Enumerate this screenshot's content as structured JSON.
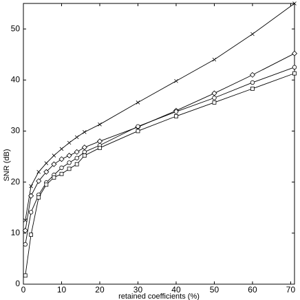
{
  "chart_data": {
    "type": "line",
    "x_label": "retained coefficients (%)",
    "y_label": "SNR (dB)",
    "x": [
      0.5,
      2,
      4,
      6,
      8,
      10,
      12,
      14,
      16,
      20,
      30,
      40,
      50,
      60,
      71
    ],
    "series": [
      {
        "marker": "x",
        "color": "#000000",
        "values": [
          12.5,
          19.2,
          22,
          23.7,
          25.2,
          26.5,
          27.7,
          28.8,
          29.8,
          31.3,
          35.6,
          39.8,
          44,
          49,
          55
        ]
      },
      {
        "marker": "diamond",
        "color": "#000000",
        "values": [
          10.5,
          17.3,
          20.2,
          22,
          23.5,
          24.5,
          25.2,
          25.9,
          26.8,
          28,
          30.8,
          34,
          37.4,
          41,
          45.2
        ]
      },
      {
        "marker": "circle",
        "color": "#000000",
        "values": [
          7.8,
          14.1,
          17.5,
          19.9,
          21.4,
          22.8,
          23.8,
          24.7,
          25.9,
          27.2,
          30.9,
          33.8,
          36.5,
          39.5,
          42.5
        ]
      },
      {
        "marker": "square",
        "color": "#000000",
        "values": [
          1.7,
          9.7,
          17,
          19.5,
          20.9,
          21.6,
          22.6,
          23.5,
          25.2,
          26.7,
          30.0,
          32.9,
          35.6,
          38.3,
          41.3
        ]
      }
    ],
    "xlim": [
      0,
      71
    ],
    "ylim": [
      0,
      55
    ],
    "xticks": [
      0,
      10,
      20,
      30,
      40,
      50,
      60,
      70
    ],
    "yticks": [
      0,
      10,
      20,
      30,
      40,
      50
    ],
    "grid": false
  }
}
